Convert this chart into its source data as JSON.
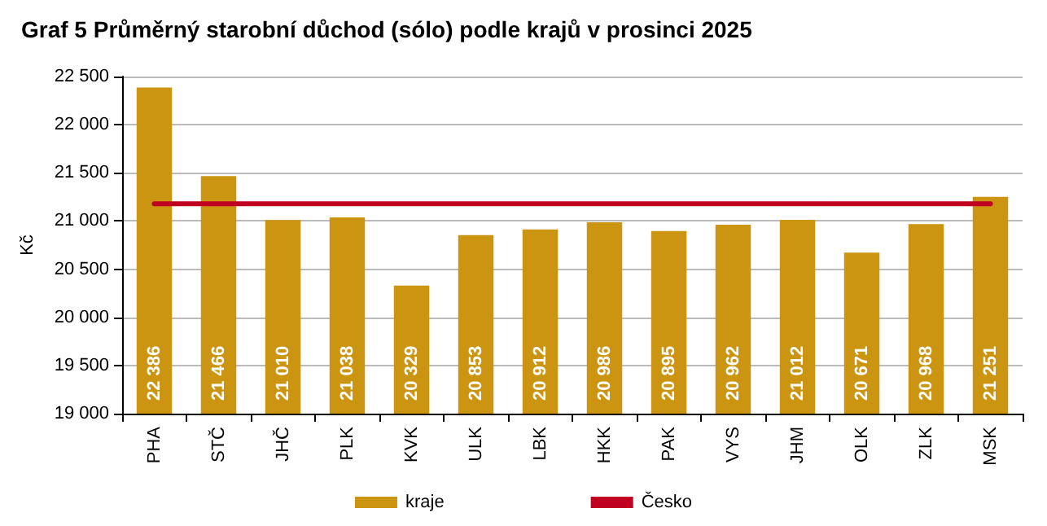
{
  "chart_data": {
    "type": "bar",
    "title": "Graf 5 Průměrný starobní důchod (sólo) podle krajů v prosinci 2025",
    "ylabel": "Kč",
    "categories": [
      "PHA",
      "STČ",
      "JHČ",
      "PLK",
      "KVK",
      "ULK",
      "LBK",
      "HKK",
      "PAK",
      "VYS",
      "JHM",
      "OLK",
      "ZLK",
      "MSK"
    ],
    "series": [
      {
        "name": "kraje",
        "color": "#cc9511",
        "values": [
          22386,
          21466,
          21010,
          21038,
          20329,
          20853,
          20912,
          20986,
          20895,
          20962,
          21012,
          20671,
          20968,
          21251
        ],
        "value_labels": [
          "22 386",
          "21 466",
          "21 010",
          "21 038",
          "20 329",
          "20 853",
          "20 912",
          "20 986",
          "20 895",
          "20 962",
          "21 012",
          "20 671",
          "20 968",
          "21 251"
        ]
      },
      {
        "name": "Česko",
        "type": "line",
        "color": "#c00020",
        "values": [
          21180,
          21180,
          21180,
          21180,
          21180,
          21180,
          21180,
          21180,
          21180,
          21180,
          21180,
          21180,
          21180,
          21180
        ]
      }
    ],
    "ylim": [
      19000,
      22500
    ],
    "yticks": [
      {
        "value": 19000,
        "label": "19 000"
      },
      {
        "value": 19500,
        "label": "19 500"
      },
      {
        "value": 20000,
        "label": "20 000"
      },
      {
        "value": 20500,
        "label": "20 500"
      },
      {
        "value": 21000,
        "label": "21 000"
      },
      {
        "value": 21500,
        "label": "21 500"
      },
      {
        "value": 22000,
        "label": "22 000"
      },
      {
        "value": 22500,
        "label": "22 500"
      }
    ],
    "grid": "y",
    "legend": "bottom",
    "marker": "none",
    "line_style": "solid"
  }
}
